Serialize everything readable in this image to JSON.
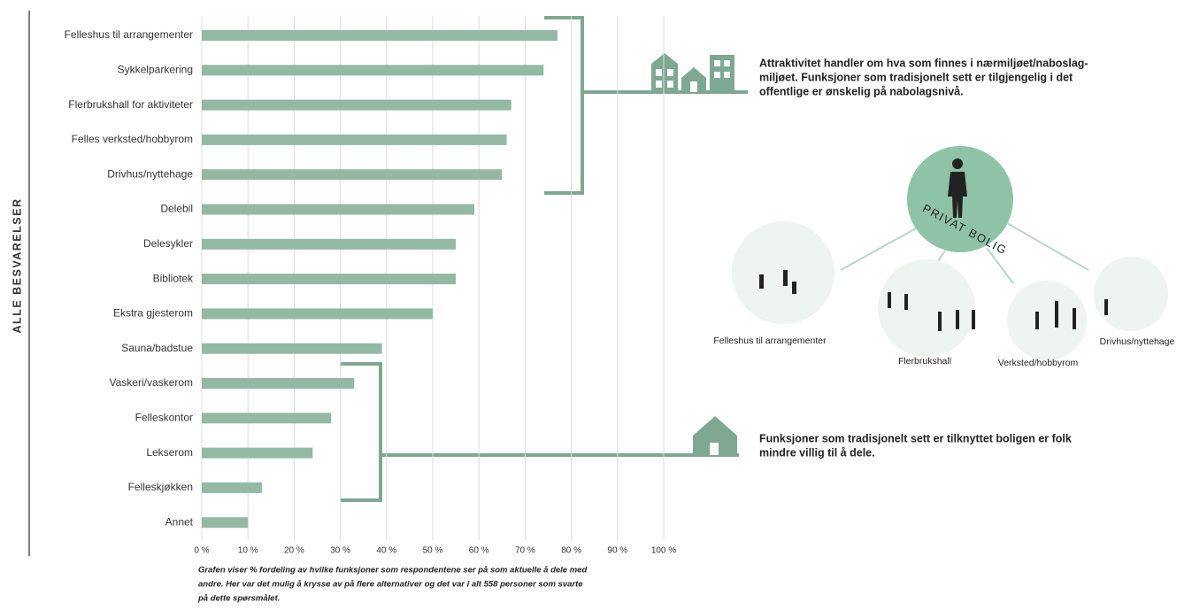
{
  "chart_data": {
    "type": "bar",
    "orientation": "horizontal",
    "y_label": "ALLE BESVARELSER",
    "categories": [
      "Felleshus til arrangementer",
      "Sykkelparkering",
      "Flerbrukshall for aktiviteter",
      "Felles verksted/hobbyrom",
      "Drivhus/nyttehage",
      "Delebil",
      "Delesykler",
      "Bibliotek",
      "Ekstra gjesterom",
      "Sauna/badstue",
      "Vaskeri/vaskerom",
      "Felleskontor",
      "Lekserom",
      "Felleskjøkken",
      "Annet"
    ],
    "values": [
      77,
      74,
      67,
      66,
      65,
      59,
      55,
      55,
      50,
      39,
      33,
      28,
      24,
      13,
      10
    ],
    "color": "#93b9a4",
    "xlim": [
      0,
      100
    ],
    "xticks": [
      {
        "value": 0,
        "label": "0 %"
      },
      {
        "value": 10,
        "label": "10 %"
      },
      {
        "value": 20,
        "label": "20 %"
      },
      {
        "value": 30,
        "label": "30 %"
      },
      {
        "value": 40,
        "label": "40 %"
      },
      {
        "value": 50,
        "label": "50 %"
      },
      {
        "value": 60,
        "label": "60 %"
      },
      {
        "value": 70,
        "label": "70 %"
      },
      {
        "value": 80,
        "label": "80 %"
      },
      {
        "value": 90,
        "label": "90 %"
      },
      {
        "value": 100,
        "label": "100 %"
      }
    ],
    "grid": true,
    "footnote": [
      "Grafen viser % fordeling av hvilke funksjoner som respondentene ser på som aktuelle å dele med",
      "andre. Her var det mulig å krysse av på flere alternativer og det var i alt 558 personer som svarte",
      "på dette spørsmålet."
    ]
  },
  "annotations": {
    "neighbourhood": [
      "Attraktivitet handler om hva som finnes i nærmiljøet/naboslag-",
      "miljøet. Funksjoner som tradisjonelt sett er tilgjengelig i det",
      "offentlige er ønskelig på nabolagsnivå."
    ],
    "home": [
      "Funksjoner som tradisjonelt sett er tilknyttet boligen er folk",
      "mindre villig til å dele."
    ]
  },
  "diagram": {
    "center": "PRIVAT BOLIG",
    "nodes": [
      "Felleshus til arrangementer",
      "Flerbrukshall",
      "Verksted/hobbyrom",
      "Drivhus/nyttehage"
    ]
  }
}
